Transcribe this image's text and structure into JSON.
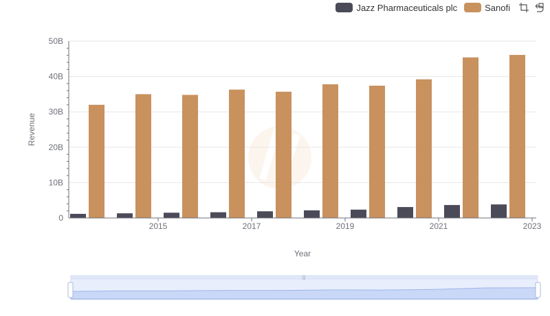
{
  "legend": [
    {
      "name": "Jazz Pharmaceuticals plc",
      "color": "#4a4a58"
    },
    {
      "name": "Sanofi",
      "color": "#c8915e"
    }
  ],
  "toolbox": {
    "zoom_icon": "zoom-icon",
    "restore_icon": "restore-icon"
  },
  "chart_data": {
    "type": "bar",
    "xlabel": "Year",
    "ylabel": "Revenue",
    "ylim": [
      0,
      50000000000
    ],
    "yticks": [
      "0",
      "10B",
      "20B",
      "30B",
      "40B",
      "50B"
    ],
    "categories": [
      "2014",
      "2015",
      "2016",
      "2017",
      "2018",
      "2019",
      "2020",
      "2021",
      "2022",
      "2023"
    ],
    "xtick_labels": [
      "2015",
      "2017",
      "2019",
      "2021",
      "2023"
    ],
    "grid": true,
    "legend_position": "top-right",
    "series": [
      {
        "name": "Jazz Pharmaceuticals plc",
        "color": "#4a4a58",
        "values": [
          1170000000,
          1320000000,
          1490000000,
          1620000000,
          1890000000,
          2160000000,
          2360000000,
          3090000000,
          3660000000,
          3830000000
        ]
      },
      {
        "name": "Sanofi",
        "color": "#c8915e",
        "values": [
          32000000000,
          35000000000,
          34800000000,
          36300000000,
          35700000000,
          37800000000,
          37400000000,
          39200000000,
          45400000000,
          46100000000
        ]
      }
    ]
  }
}
